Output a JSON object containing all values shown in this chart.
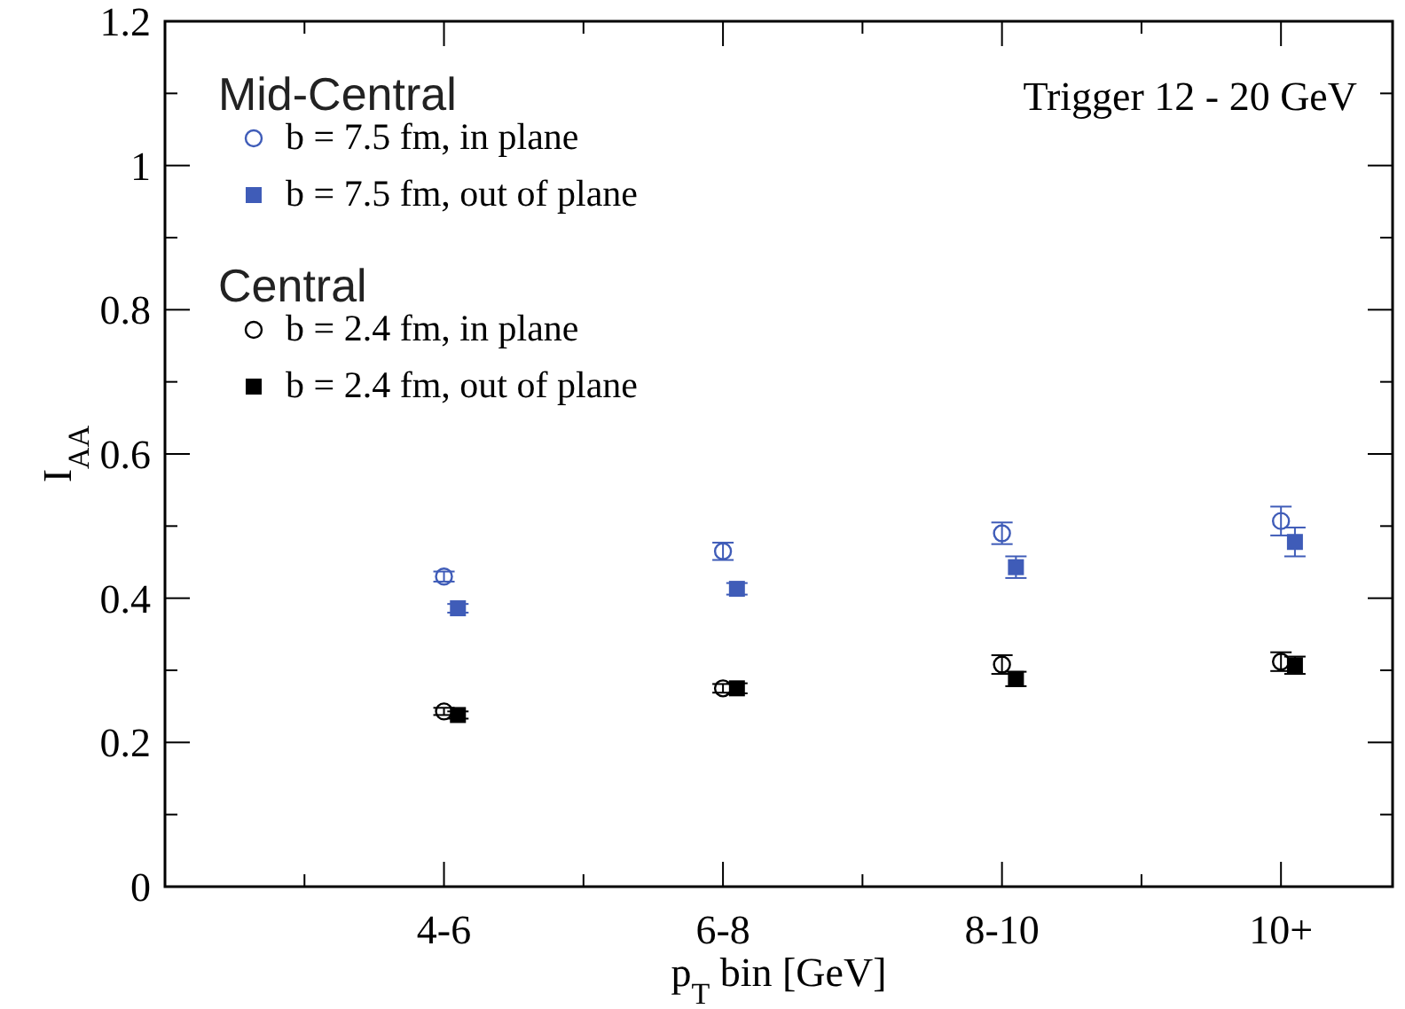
{
  "chart_data": {
    "type": "scatter",
    "xlabel": "p$_{T}$ bin [GeV]",
    "ylabel": "I$_{AA}$",
    "annotations": [
      "Mid-Central",
      "Central",
      "Trigger 12 - 20 GeV"
    ],
    "categories": [
      "4-6",
      "6-8",
      "8-10",
      "10+"
    ],
    "ylim": [
      0,
      1.2
    ],
    "yticks": [
      0,
      0.2,
      0.4,
      0.6,
      0.8,
      1,
      1.2
    ],
    "grid": false,
    "legend": "top left",
    "series": [
      {
        "name": "b = 7.5 fm, in plane",
        "color": "#3f5cb8",
        "marker": "circle",
        "values": [
          0.43,
          0.465,
          0.49,
          0.507
        ],
        "errors": [
          0.007,
          0.012,
          0.015,
          0.02
        ]
      },
      {
        "name": "b = 7.5 fm, out of plane",
        "color": "#3f5cb8",
        "marker": "square",
        "values": [
          0.386,
          0.413,
          0.443,
          0.478
        ],
        "errors": [
          0.006,
          0.008,
          0.015,
          0.02
        ]
      },
      {
        "name": "b = 2.4 fm, in plane",
        "color": "#000000",
        "marker": "circle",
        "values": [
          0.243,
          0.275,
          0.308,
          0.312
        ],
        "errors": [
          0.005,
          0.006,
          0.013,
          0.013
        ]
      },
      {
        "name": "b = 2.4 fm, out of plane",
        "color": "#000000",
        "marker": "square",
        "values": [
          0.238,
          0.275,
          0.288,
          0.307
        ],
        "errors": [
          0.005,
          0.007,
          0.01,
          0.012
        ]
      }
    ]
  }
}
